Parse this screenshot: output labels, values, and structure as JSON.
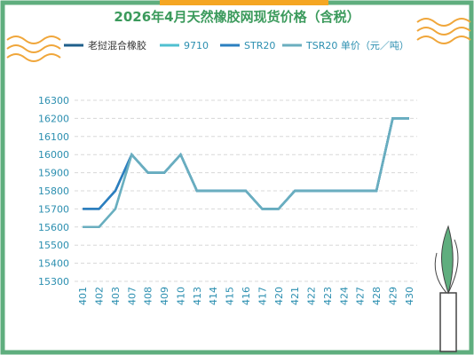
{
  "chart_data": {
    "type": "line",
    "title": "2026年4月天然橡胶网现货价格（含税）",
    "categories": [
      "401",
      "402",
      "403",
      "407",
      "408",
      "409",
      "410",
      "413",
      "414",
      "415",
      "416",
      "417",
      "420",
      "421",
      "422",
      "423",
      "424",
      "427",
      "428",
      "429",
      "430"
    ],
    "series": [
      {
        "name": "老挝混合橡胶",
        "color": "#1f5f8b",
        "values": [
          15700,
          15700,
          15800,
          16000,
          15900,
          15900,
          16000,
          15800,
          15800,
          15800,
          15800,
          15700,
          15700,
          15800,
          15800,
          15800,
          15800,
          15800,
          15800,
          16200,
          16200
        ]
      },
      {
        "name": "9710",
        "color": "#4fc0d0",
        "values": [
          15600,
          15600,
          15700,
          16000,
          15900,
          15900,
          16000,
          15800,
          15800,
          15800,
          15800,
          15700,
          15700,
          15800,
          15800,
          15800,
          15800,
          15800,
          15800,
          16200,
          16200
        ]
      },
      {
        "name": "STR20",
        "color": "#2b7fc0",
        "values": [
          15700,
          15700,
          15800,
          16000,
          15900,
          15900,
          16000,
          15800,
          15800,
          15800,
          15800,
          15700,
          15700,
          15800,
          15800,
          15800,
          15800,
          15800,
          15800,
          16200,
          16200
        ]
      },
      {
        "name": "TSR20 单价（元／吨）",
        "color": "#6aaebf",
        "values": [
          15600,
          15600,
          15700,
          16000,
          15900,
          15900,
          16000,
          15800,
          15800,
          15800,
          15800,
          15700,
          15700,
          15800,
          15800,
          15800,
          15800,
          15800,
          15800,
          16200,
          16200
        ]
      }
    ],
    "ylim": [
      15300,
      16300
    ],
    "yticks": [
      15300,
      15400,
      15500,
      15600,
      15700,
      15800,
      15900,
      16000,
      16100,
      16200,
      16300
    ],
    "grid": true
  }
}
